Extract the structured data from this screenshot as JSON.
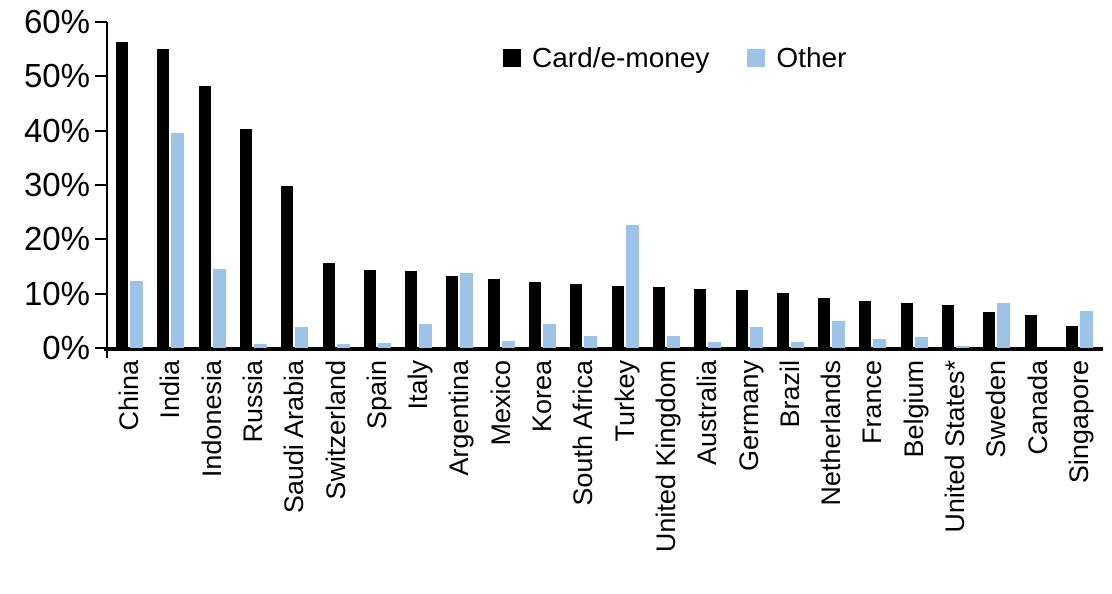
{
  "chart_data": {
    "type": "bar",
    "title": "",
    "xlabel": "",
    "ylabel": "",
    "ylim": [
      0,
      60
    ],
    "y_unit": "%",
    "grid": false,
    "legend_position": "top-center-inside",
    "y_ticks": [
      "60%",
      "50%",
      "40%",
      "30%",
      "20%",
      "10%",
      "0%"
    ],
    "categories": [
      "China",
      "India",
      "Indonesia",
      "Russia",
      "Saudi Arabia",
      "Switzerland",
      "Spain",
      "Italy",
      "Argentina",
      "Mexico",
      "Korea",
      "South Africa",
      "Turkey",
      "United Kingdom",
      "Australia",
      "Germany",
      "Brazil",
      "Netherlands",
      "France",
      "Belgium",
      "United States*",
      "Sweden",
      "Canada",
      "Singapore"
    ],
    "series": [
      {
        "name": "Card/e-money",
        "color": "#000000",
        "values": [
          56.3,
          55.0,
          48.2,
          40.4,
          29.8,
          15.6,
          14.3,
          14.1,
          13.3,
          12.8,
          12.2,
          11.7,
          11.5,
          11.2,
          10.9,
          10.6,
          10.1,
          9.3,
          8.7,
          8.2,
          8.0,
          6.6,
          6.1,
          4.0
        ]
      },
      {
        "name": "Other",
        "color": "#9DC3E6",
        "values": [
          12.3,
          39.6,
          14.5,
          0.8,
          3.8,
          0.7,
          0.9,
          4.5,
          13.8,
          1.3,
          4.5,
          2.3,
          22.6,
          2.3,
          1.1,
          3.9,
          1.2,
          4.9,
          1.6,
          2.1,
          0.3,
          8.2,
          0.0,
          6.8
        ]
      }
    ]
  },
  "colors": {
    "axis": "#000000",
    "background": "#FFFFFF",
    "series_card": "#000000",
    "series_other": "#9DC3E6"
  }
}
